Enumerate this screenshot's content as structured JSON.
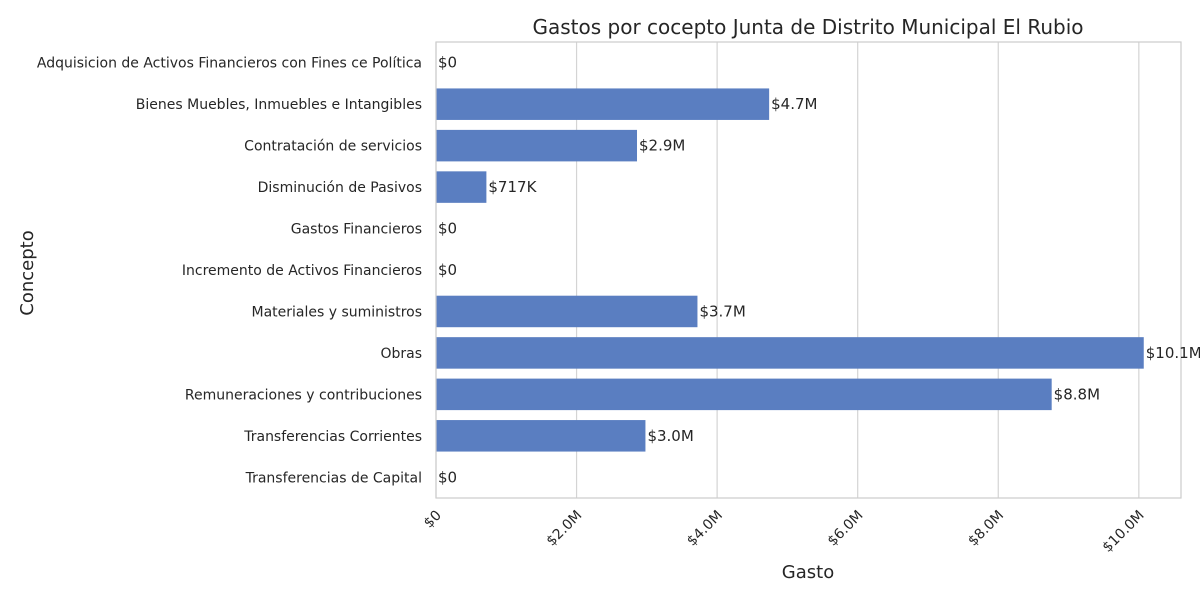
{
  "chart_data": {
    "type": "bar",
    "orientation": "horizontal",
    "title": "Gastos por cocepto Junta de Distrito Municipal El Rubio",
    "xlabel": "Gasto",
    "ylabel": "Concepto",
    "xlim": [
      0,
      10600000
    ],
    "grid": true,
    "bar_color": "#5a7ec1",
    "x_ticks": [
      {
        "value": 0,
        "label": "$0"
      },
      {
        "value": 2000000,
        "label": "$2.0M"
      },
      {
        "value": 4000000,
        "label": "$4.0M"
      },
      {
        "value": 6000000,
        "label": "$6.0M"
      },
      {
        "value": 8000000,
        "label": "$8.0M"
      },
      {
        "value": 10000000,
        "label": "$10.0M"
      }
    ],
    "categories": [
      "Adquisicion de Activos Financieros con Fines ce Política",
      "Bienes Muebles, Inmuebles e Intangibles",
      "Contratación de servicios",
      "Disminución de Pasivos",
      "Gastos Financieros",
      "Incremento de Activos Financieros",
      "Materiales y suministros",
      "Obras",
      "Remuneraciones y contribuciones",
      "Transferencias Corrientes",
      "Transferencias de Capital"
    ],
    "values": [
      0,
      4740000,
      2860000,
      717000,
      0,
      0,
      3720000,
      10070000,
      8760000,
      2980000,
      0
    ],
    "data_labels": [
      "$0",
      "$4.7M",
      "$2.9M",
      "$717K",
      "$0",
      "$0",
      "$3.7M",
      "$10.1M",
      "$8.8M",
      "$3.0M",
      "$0"
    ]
  }
}
